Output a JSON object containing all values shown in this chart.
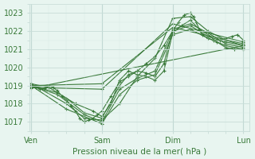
{
  "bg_color": "#e8f5f0",
  "plot_bg_color": "#e8f5f0",
  "grid_major_color": "#c8ddd8",
  "grid_minor_color": "#d8eae5",
  "line_color": "#3a7a3a",
  "ylabel_values": [
    1017,
    1018,
    1019,
    1020,
    1021,
    1022,
    1023
  ],
  "xtick_labels": [
    "Ven",
    "Sam",
    "Dim",
    "Lun"
  ],
  "xtick_positions": [
    0,
    96,
    192,
    288
  ],
  "xlabel": "Pression niveau de la mer( hPa )",
  "ylim": [
    1016.5,
    1023.5
  ],
  "xlim": [
    -2,
    296
  ],
  "lines": [
    [
      0,
      1019.0,
      6,
      1018.9,
      12,
      1018.8,
      18,
      1018.85,
      24,
      1019.0,
      30,
      1018.9,
      36,
      1018.7,
      42,
      1018.4,
      48,
      1018.2,
      54,
      1017.9,
      60,
      1017.6,
      66,
      1017.2,
      72,
      1017.0,
      78,
      1017.1,
      84,
      1017.2,
      90,
      1017.4,
      96,
      1017.6,
      108,
      1018.4,
      120,
      1019.2,
      132,
      1019.5,
      144,
      1019.8,
      156,
      1020.2,
      168,
      1020.6,
      180,
      1021.2,
      192,
      1022.0,
      200,
      1022.5,
      208,
      1022.9,
      216,
      1023.0,
      220,
      1022.8,
      224,
      1022.5,
      228,
      1022.1,
      232,
      1021.8,
      240,
      1021.6,
      248,
      1021.5,
      256,
      1021.5,
      264,
      1021.6,
      272,
      1021.7,
      280,
      1021.8,
      288,
      1021.5
    ],
    [
      0,
      1019.0,
      96,
      1019.1,
      192,
      1022.2,
      288,
      1021.3
    ],
    [
      0,
      1018.9,
      96,
      1018.8,
      192,
      1022.4,
      288,
      1021.4
    ],
    [
      0,
      1019.1,
      48,
      1018.0,
      72,
      1017.2,
      96,
      1017.1,
      120,
      1018.0,
      144,
      1019.5,
      168,
      1020.5,
      192,
      1022.7,
      216,
      1022.8,
      240,
      1022.0,
      264,
      1021.5,
      288,
      1021.2
    ],
    [
      0,
      1019.0,
      36,
      1018.6,
      60,
      1018.0,
      84,
      1017.6,
      96,
      1017.3,
      108,
      1018.0,
      120,
      1019.3,
      132,
      1019.8,
      144,
      1019.6,
      156,
      1019.5,
      168,
      1019.3,
      180,
      1019.8,
      192,
      1021.9,
      204,
      1022.3,
      216,
      1022.6,
      228,
      1022.1,
      240,
      1021.8,
      252,
      1021.4,
      264,
      1021.1,
      276,
      1021.0,
      288,
      1021.0
    ],
    [
      0,
      1019.1,
      24,
      1018.9,
      48,
      1018.3,
      72,
      1017.5,
      96,
      1017.2,
      120,
      1019.0,
      132,
      1019.6,
      144,
      1019.8,
      156,
      1019.7,
      168,
      1019.5,
      180,
      1020.2,
      192,
      1022.1,
      216,
      1022.4,
      240,
      1021.9,
      264,
      1021.3,
      288,
      1021.1
    ],
    [
      0,
      1019.0,
      36,
      1018.5,
      72,
      1017.4,
      96,
      1017.0,
      120,
      1018.8,
      144,
      1019.4,
      168,
      1019.8,
      192,
      1022.0,
      216,
      1022.3,
      240,
      1021.7,
      264,
      1021.4,
      288,
      1021.2
    ],
    [
      0,
      1019.0,
      48,
      1017.7,
      96,
      1016.9,
      120,
      1018.5,
      144,
      1019.3,
      168,
      1019.6,
      192,
      1021.8,
      216,
      1022.1,
      240,
      1021.6,
      264,
      1021.2,
      288,
      1021.0
    ],
    [
      0,
      1018.85,
      288,
      1021.2
    ]
  ],
  "lw": 0.8,
  "marker": "+",
  "markersize": 3.5,
  "markeredgewidth": 0.8,
  "tick_labelsize": 7,
  "xlabel_fontsize": 7.5
}
